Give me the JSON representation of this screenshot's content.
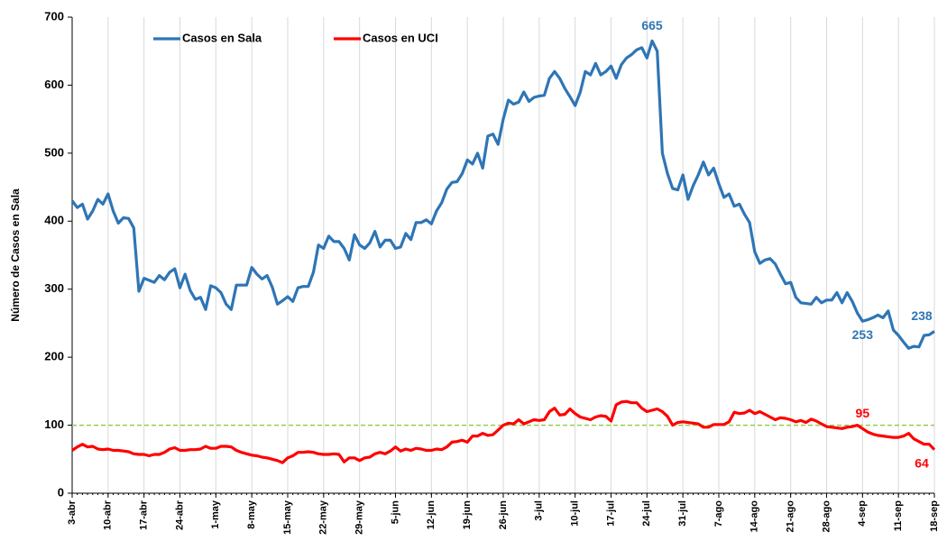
{
  "chart_data": {
    "type": "line",
    "y_label": "Número de Casos en Sala",
    "categories": [
      "3-abr",
      null,
      null,
      null,
      null,
      null,
      null,
      "10-abr",
      null,
      null,
      null,
      null,
      null,
      null,
      "17-abr",
      null,
      null,
      null,
      null,
      null,
      null,
      "24-abr",
      null,
      null,
      null,
      null,
      null,
      null,
      "1-may",
      null,
      null,
      null,
      null,
      null,
      null,
      "8-may",
      null,
      null,
      null,
      null,
      null,
      null,
      "15-may",
      null,
      null,
      null,
      null,
      null,
      null,
      "22-may",
      null,
      null,
      null,
      null,
      null,
      null,
      "29-may",
      null,
      null,
      null,
      null,
      null,
      null,
      "5-jun",
      null,
      null,
      null,
      null,
      null,
      null,
      "12-jun",
      null,
      null,
      null,
      null,
      null,
      null,
      "19-jun",
      null,
      null,
      null,
      null,
      null,
      null,
      "26-jun",
      null,
      null,
      null,
      null,
      null,
      null,
      "3-jul",
      null,
      null,
      null,
      null,
      null,
      null,
      "10-jul",
      null,
      null,
      null,
      null,
      null,
      null,
      "17-jul",
      null,
      null,
      null,
      null,
      null,
      null,
      "24-jul",
      null,
      null,
      null,
      null,
      null,
      null,
      "31-jul",
      null,
      null,
      null,
      null,
      null,
      null,
      "7-ago",
      null,
      null,
      null,
      null,
      null,
      null,
      "14-ago",
      null,
      null,
      null,
      null,
      null,
      null,
      "21-ago",
      null,
      null,
      null,
      null,
      null,
      null,
      "28-ago",
      null,
      null,
      null,
      null,
      null,
      null,
      "4-sep",
      null,
      null,
      null,
      null,
      null,
      null,
      "11-sep",
      null,
      null,
      null,
      null,
      null,
      null,
      "18-sep"
    ],
    "series": [
      {
        "name": "Casos en Sala",
        "color": "#2e75b6",
        "values": [
          430,
          420,
          425,
          403,
          415,
          432,
          425,
          440,
          415,
          397,
          405,
          404,
          390,
          297,
          316,
          313,
          310,
          320,
          314,
          325,
          330,
          302,
          322,
          298,
          285,
          288,
          270,
          305,
          302,
          295,
          278,
          270,
          306,
          306,
          306,
          332,
          322,
          315,
          320,
          303,
          278,
          283,
          289,
          282,
          302,
          304,
          304,
          325,
          365,
          360,
          378,
          370,
          370,
          360,
          343,
          380,
          365,
          360,
          368,
          385,
          362,
          372,
          372,
          360,
          362,
          382,
          373,
          398,
          398,
          402,
          396,
          415,
          427,
          447,
          457,
          458,
          470,
          490,
          484,
          500,
          478,
          525,
          528,
          513,
          550,
          578,
          572,
          575,
          590,
          576,
          582,
          584,
          585,
          610,
          620,
          610,
          595,
          583,
          570,
          590,
          620,
          615,
          632,
          615,
          620,
          628,
          610,
          630,
          640,
          645,
          652,
          655,
          640,
          665,
          650,
          500,
          470,
          448,
          446,
          468,
          432,
          452,
          468,
          487,
          468,
          478,
          455,
          435,
          440,
          422,
          425,
          410,
          398,
          355,
          338,
          343,
          345,
          337,
          322,
          308,
          310,
          288,
          280,
          279,
          278,
          288,
          280,
          284,
          284,
          295,
          280,
          295,
          282,
          265,
          253,
          255,
          258,
          262,
          258,
          268,
          240,
          232,
          222,
          213,
          216,
          215,
          232,
          233,
          238
        ],
        "labels": [
          {
            "index": 113,
            "position": "above"
          },
          {
            "index": 154,
            "position": "below"
          },
          {
            "index": 168,
            "position": "above"
          }
        ]
      },
      {
        "name": "Casos en UCI",
        "color": "#ff0000",
        "values": [
          63,
          68,
          72,
          68,
          69,
          65,
          64,
          65,
          63,
          63,
          62,
          61,
          58,
          57,
          57,
          55,
          57,
          57,
          60,
          65,
          67,
          63,
          63,
          64,
          64,
          65,
          69,
          66,
          66,
          69,
          69,
          68,
          63,
          60,
          58,
          56,
          55,
          53,
          52,
          50,
          48,
          45,
          52,
          55,
          60,
          60,
          61,
          60,
          58,
          57,
          57,
          58,
          57,
          46,
          52,
          52,
          48,
          52,
          53,
          58,
          60,
          58,
          62,
          68,
          62,
          65,
          63,
          66,
          65,
          63,
          63,
          65,
          64,
          68,
          75,
          76,
          78,
          75,
          84,
          84,
          88,
          85,
          86,
          93,
          100,
          103,
          102,
          108,
          102,
          105,
          108,
          107,
          108,
          120,
          125,
          115,
          116,
          124,
          117,
          112,
          110,
          108,
          112,
          114,
          113,
          106,
          130,
          134,
          135,
          133,
          133,
          125,
          120,
          122,
          124,
          120,
          113,
          100,
          104,
          105,
          104,
          103,
          102,
          97,
          97,
          101,
          101,
          101,
          105,
          119,
          117,
          118,
          122,
          117,
          120,
          116,
          112,
          108,
          111,
          110,
          108,
          105,
          107,
          104,
          109,
          106,
          102,
          98,
          97,
          96,
          95,
          97,
          98,
          100,
          95,
          90,
          87,
          85,
          84,
          83,
          82,
          82,
          84,
          88,
          80,
          76,
          72,
          72,
          64
        ],
        "labels": [
          {
            "index": 154,
            "position": "above"
          },
          {
            "index": 168,
            "position": "below"
          }
        ]
      }
    ],
    "ylim": [
      0,
      700
    ],
    "yticks": [
      0,
      100,
      200,
      300,
      400,
      500,
      600,
      700
    ],
    "reference_line": 100,
    "reference_color": "#92d050",
    "grid": "x",
    "legend": "upper-left"
  }
}
